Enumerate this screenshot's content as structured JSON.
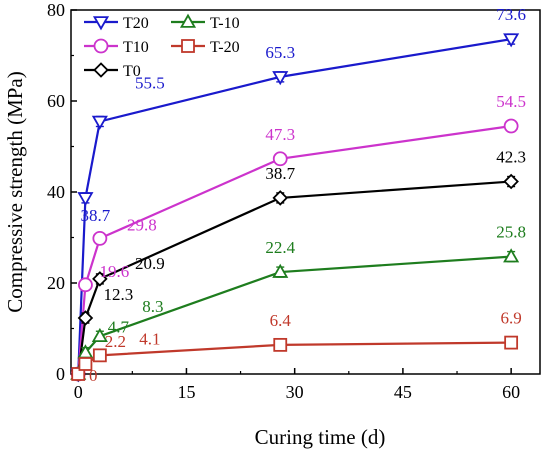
{
  "chart_data": {
    "type": "line",
    "xlabel": "Curing time (d)",
    "ylabel": "Compressive strength  (MPa)",
    "xlim": [
      -1,
      64
    ],
    "ylim": [
      0,
      80
    ],
    "x_ticks": [
      0,
      15,
      30,
      45,
      60
    ],
    "y_ticks": [
      0,
      20,
      40,
      60,
      80
    ],
    "legend_position": "top-left",
    "series": [
      {
        "name": "T20",
        "color": "#1a1acc",
        "marker": "triangle-down",
        "x": [
          0,
          1,
          3,
          28,
          60
        ],
        "y": [
          0,
          38.7,
          55.5,
          65.3,
          73.6
        ],
        "labels": [
          "",
          "38.7",
          "55.5",
          "65.3",
          "73.6"
        ]
      },
      {
        "name": "T10",
        "color": "#cc33cc",
        "marker": "circle",
        "x": [
          0,
          1,
          3,
          28,
          60
        ],
        "y": [
          0,
          19.6,
          29.8,
          47.3,
          54.5
        ],
        "labels": [
          "",
          "19.6",
          "29.8",
          "47.3",
          "54.5"
        ]
      },
      {
        "name": "T0",
        "color": "#000000",
        "marker": "diamond",
        "x": [
          0,
          1,
          3,
          28,
          60
        ],
        "y": [
          0,
          12.3,
          20.9,
          38.7,
          42.3
        ],
        "labels": [
          "",
          "12.3",
          "20.9",
          "38.7",
          "42.3"
        ]
      },
      {
        "name": "T-10",
        "color": "#1e7d1e",
        "marker": "triangle-up",
        "x": [
          0,
          1,
          3,
          28,
          60
        ],
        "y": [
          0,
          4.7,
          8.3,
          22.4,
          25.8
        ],
        "labels": [
          "",
          "4.7",
          "8.3",
          "22.4",
          "25.8"
        ]
      },
      {
        "name": "T-20",
        "color": "#c0392b",
        "marker": "square",
        "x": [
          0,
          1,
          3,
          28,
          60
        ],
        "y": [
          0,
          2.2,
          4.1,
          6.4,
          6.9
        ],
        "labels": [
          "0",
          "2.2",
          "4.1",
          "6.4",
          "6.9"
        ]
      }
    ]
  }
}
